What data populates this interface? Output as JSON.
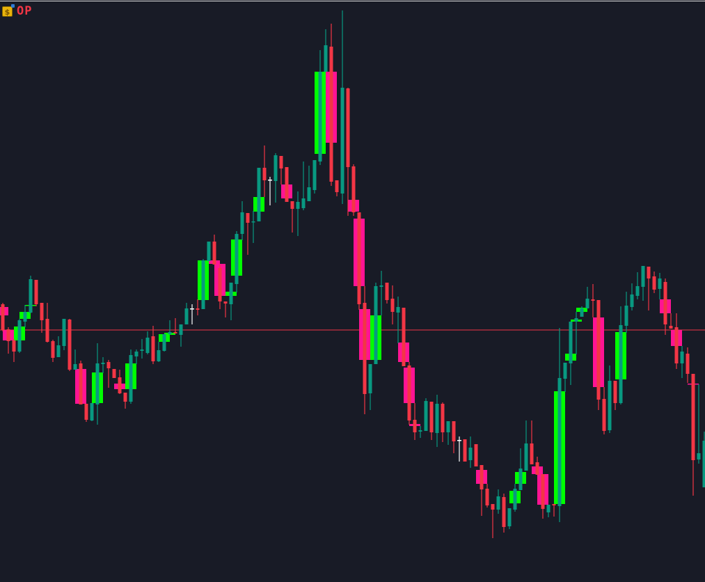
{
  "symbol": {
    "label": "OP",
    "icon": "dollar-coin-icon"
  },
  "colors": {
    "background": "#181b26",
    "bull": "#089981",
    "bear": "#f23645",
    "doji": "#ffffff",
    "htf_bull": "#00ff00",
    "htf_bear": "#ff1493",
    "level_line": "#f23645"
  },
  "chart_data": {
    "type": "candlestick",
    "title": "",
    "xlabel": "",
    "ylabel": "",
    "ylim": [
      164,
      1000
    ],
    "grid": false,
    "level_line": 526,
    "candles_ohlc": [
      [
        563,
        565,
        524,
        526
      ],
      [
        527,
        530,
        492,
        510
      ],
      [
        511,
        513,
        480,
        495
      ],
      [
        495,
        542,
        493,
        540
      ],
      [
        538,
        562,
        530,
        552
      ],
      [
        551,
        604,
        550,
        599
      ],
      [
        598,
        598,
        560,
        563
      ],
      [
        565,
        565,
        522,
        540
      ],
      [
        542,
        565,
        508,
        509
      ],
      [
        510,
        512,
        480,
        486
      ],
      [
        487,
        517,
        487,
        504
      ],
      [
        503,
        542,
        497,
        542
      ],
      [
        541,
        542,
        467,
        469
      ],
      [
        469,
        498,
        469,
        477
      ],
      [
        478,
        482,
        419,
        419
      ],
      [
        420,
        420,
        394,
        397
      ],
      [
        396,
        421,
        395,
        421
      ],
      [
        419,
        507,
        390,
        478
      ],
      [
        477,
        487,
        464,
        479
      ],
      [
        480,
        483,
        443,
        471
      ],
      [
        470,
        470,
        457,
        457
      ],
      [
        458,
        469,
        434,
        435
      ],
      [
        436,
        436,
        413,
        423
      ],
      [
        423,
        498,
        420,
        490
      ],
      [
        488,
        498,
        477,
        495
      ],
      [
        496,
        513,
        485,
        498
      ],
      [
        493,
        524,
        491,
        515
      ],
      [
        517,
        532,
        477,
        481
      ],
      [
        481,
        509,
        480,
        497
      ],
      [
        496,
        520,
        495,
        520
      ],
      [
        520,
        540,
        519,
        523
      ],
      [
        523,
        543,
        521,
        521
      ],
      [
        519,
        534,
        502,
        534
      ],
      [
        534,
        565,
        534,
        557
      ],
      [
        557,
        563,
        534,
        557
      ],
      [
        557,
        570,
        547,
        555
      ],
      [
        556,
        628,
        556,
        626
      ],
      [
        625,
        653,
        625,
        653
      ],
      [
        653,
        663,
        620,
        620
      ],
      [
        615,
        620,
        556,
        567
      ],
      [
        567,
        567,
        544,
        564
      ],
      [
        563,
        594,
        540,
        594
      ],
      [
        592,
        668,
        580,
        664
      ],
      [
        664,
        711,
        655,
        695
      ],
      [
        694,
        694,
        634,
        680
      ],
      [
        681,
        697,
        651,
        682
      ],
      [
        682,
        759,
        682,
        759
      ],
      [
        759,
        791,
        717,
        741
      ],
      [
        742,
        746,
        705,
        742
      ],
      [
        740,
        780,
        709,
        777
      ],
      [
        776,
        776,
        735,
        758
      ],
      [
        760,
        760,
        710,
        710
      ],
      [
        711,
        711,
        666,
        700
      ],
      [
        700,
        725,
        661,
        710
      ],
      [
        701,
        768,
        698,
        715
      ],
      [
        711,
        762,
        711,
        731
      ],
      [
        727,
        770,
        722,
        770
      ],
      [
        768,
        928,
        763,
        897
      ],
      [
        897,
        958,
        897,
        935
      ],
      [
        933,
        966,
        733,
        739
      ],
      [
        741,
        741,
        718,
        724
      ],
      [
        722,
        985,
        707,
        874
      ],
      [
        873,
        874,
        690,
        760
      ],
      [
        761,
        764,
        690,
        695
      ],
      [
        695,
        695,
        555,
        563
      ],
      [
        565,
        589,
        405,
        434
      ],
      [
        435,
        477,
        411,
        477
      ],
      [
        477,
        594,
        477,
        589
      ],
      [
        588,
        611,
        547,
        590
      ],
      [
        594,
        594,
        564,
        569
      ],
      [
        571,
        590,
        534,
        552
      ],
      [
        551,
        574,
        507,
        559
      ],
      [
        558,
        558,
        474,
        474
      ],
      [
        475,
        480,
        390,
        396
      ],
      [
        397,
        421,
        368,
        379
      ],
      [
        380,
        388,
        371,
        382
      ],
      [
        381,
        428,
        381,
        424
      ],
      [
        423,
        423,
        368,
        379
      ],
      [
        378,
        433,
        358,
        420
      ],
      [
        420,
        422,
        365,
        379
      ],
      [
        379,
        395,
        361,
        395
      ],
      [
        395,
        395,
        349,
        366
      ],
      [
        368,
        373,
        337,
        368
      ],
      [
        369,
        369,
        337,
        337
      ],
      [
        339,
        373,
        328,
        357
      ],
      [
        362,
        362,
        330,
        330
      ],
      [
        332,
        332,
        259,
        297
      ],
      [
        298,
        305,
        271,
        274
      ],
      [
        276,
        276,
        227,
        268
      ],
      [
        268,
        297,
        262,
        287
      ],
      [
        286,
        291,
        235,
        243
      ],
      [
        244,
        270,
        240,
        270
      ],
      [
        268,
        305,
        265,
        298
      ],
      [
        296,
        356,
        296,
        327
      ],
      [
        324,
        396,
        324,
        363
      ],
      [
        363,
        396,
        333,
        333
      ],
      [
        336,
        344,
        318,
        318
      ],
      [
        319,
        319,
        255,
        269
      ],
      [
        264,
        275,
        257,
        275
      ],
      [
        276,
        276,
        258,
        274
      ],
      [
        273,
        529,
        250,
        457
      ],
      [
        456,
        479,
        437,
        479
      ],
      [
        478,
        538,
        447,
        538
      ],
      [
        538,
        552,
        491,
        543
      ],
      [
        545,
        560,
        545,
        557
      ],
      [
        557,
        588,
        557,
        571
      ],
      [
        570,
        592,
        544,
        568
      ],
      [
        569,
        569,
        411,
        426
      ],
      [
        427,
        444,
        376,
        381
      ],
      [
        382,
        475,
        378,
        453
      ],
      [
        453,
        453,
        411,
        421
      ],
      [
        421,
        560,
        419,
        533
      ],
      [
        532,
        581,
        522,
        561
      ],
      [
        559,
        593,
        554,
        577
      ],
      [
        575,
        609,
        570,
        589
      ],
      [
        588,
        618,
        568,
        618
      ],
      [
        617,
        617,
        554,
        600
      ],
      [
        603,
        610,
        579,
        584
      ],
      [
        585,
        608,
        570,
        600
      ],
      [
        595,
        600,
        519,
        534
      ],
      [
        532,
        550,
        528,
        528
      ],
      [
        530,
        550,
        470,
        478
      ],
      [
        478,
        503,
        457,
        495
      ],
      [
        492,
        501,
        450,
        463
      ],
      [
        463,
        463,
        288,
        339
      ],
      [
        340,
        448,
        334,
        349
      ],
      [
        300,
        380,
        300,
        367
      ]
    ],
    "htf_boxes": [
      [
        0,
        559,
        547
      ],
      [
        1,
        526,
        511
      ],
      [
        3,
        511,
        531
      ],
      [
        4,
        542,
        552
      ],
      [
        5,
        561,
        562
      ],
      [
        14,
        470,
        420
      ],
      [
        17,
        421,
        465
      ],
      [
        21,
        449,
        441
      ],
      [
        23,
        441,
        478
      ],
      [
        29,
        509,
        520
      ],
      [
        30,
        519,
        522
      ],
      [
        36,
        569,
        626
      ],
      [
        38,
        626,
        621
      ],
      [
        39,
        621,
        575
      ],
      [
        41,
        575,
        581
      ],
      [
        42,
        604,
        656
      ],
      [
        46,
        696,
        717
      ],
      [
        51,
        735,
        715
      ],
      [
        57,
        779,
        897
      ],
      [
        59,
        897,
        795
      ],
      [
        63,
        713,
        696
      ],
      [
        64,
        686,
        589
      ],
      [
        65,
        556,
        483
      ],
      [
        67,
        483,
        547
      ],
      [
        72,
        508,
        480
      ],
      [
        73,
        472,
        421
      ],
      [
        74,
        391,
        388
      ],
      [
        86,
        325,
        305
      ],
      [
        92,
        277,
        295
      ],
      [
        93,
        305,
        322
      ],
      [
        96,
        330,
        319
      ],
      [
        97,
        319,
        275
      ],
      [
        100,
        276,
        438
      ],
      [
        102,
        482,
        492
      ],
      [
        103,
        538,
        541
      ],
      [
        104,
        552,
        558
      ],
      [
        107,
        544,
        444
      ],
      [
        111,
        455,
        523
      ],
      [
        119,
        570,
        550
      ],
      [
        121,
        526,
        503
      ],
      [
        124,
        449,
        448
      ]
    ]
  }
}
